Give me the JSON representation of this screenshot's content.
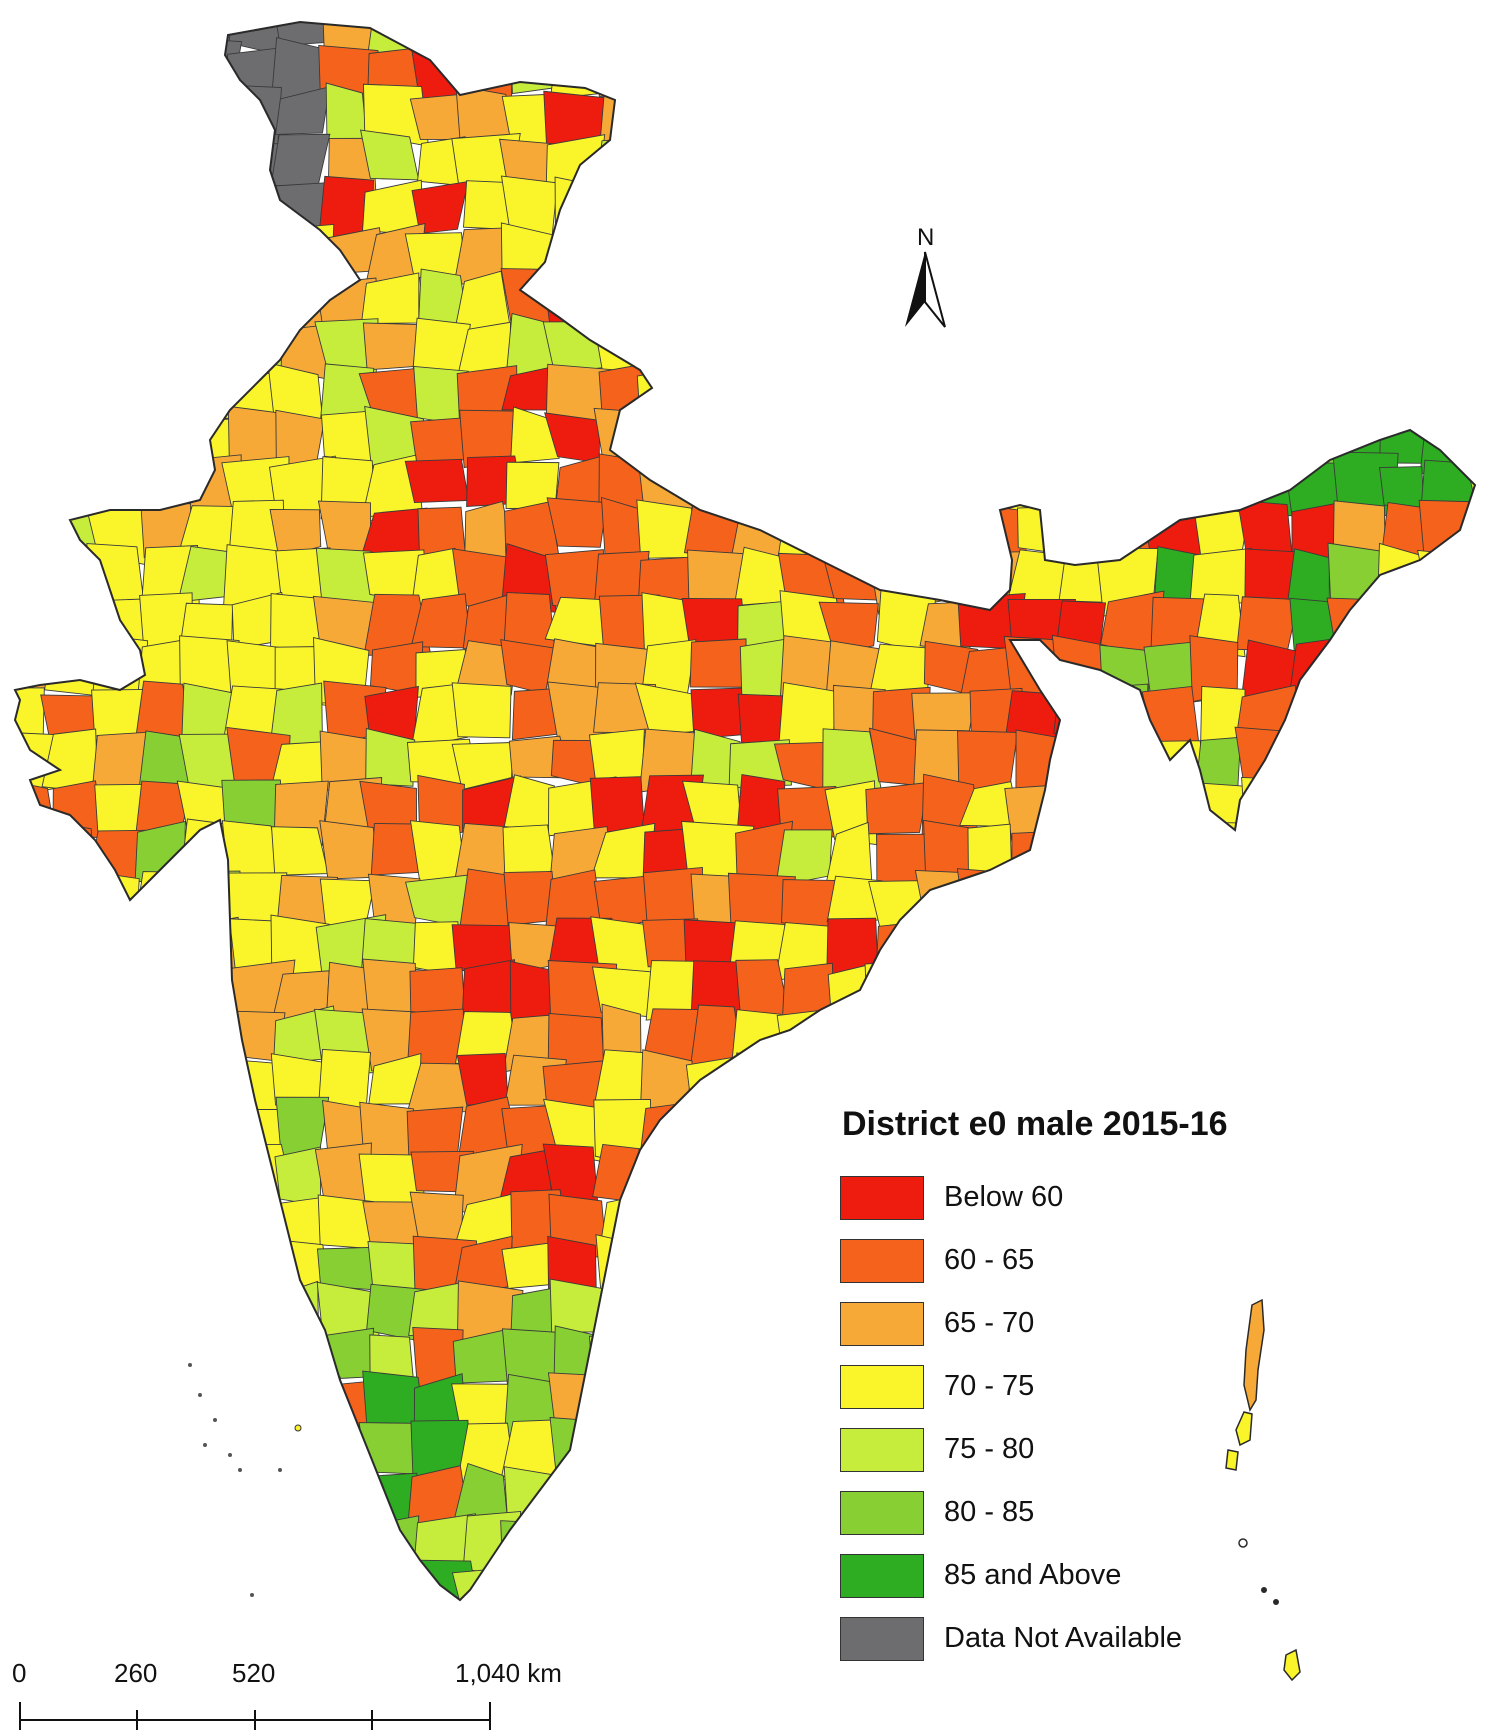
{
  "legend": {
    "title": "District e0 male 2015-16",
    "items": [
      {
        "label": "Below  60",
        "color": "#ee1c0e"
      },
      {
        "label": "60 - 65",
        "color": "#f4621b"
      },
      {
        "label": "65 - 70",
        "color": "#f7a937"
      },
      {
        "label": "70 - 75",
        "color": "#faf42a"
      },
      {
        "label": "75 - 80",
        "color": "#c6ec3c"
      },
      {
        "label": "80 - 85",
        "color": "#87cf33"
      },
      {
        "label": "85 and Above",
        "color": "#2eac22"
      },
      {
        "label": "Data Not Available",
        "color": "#6d6d6f"
      }
    ]
  },
  "north_arrow": {
    "label": "N",
    "icon": "north-arrow-icon"
  },
  "scale_bar": {
    "labels": [
      "0",
      "260",
      "520",
      "1,040 km"
    ]
  },
  "colors": {
    "border": "#2a2a2a",
    "background": "#ffffff"
  }
}
